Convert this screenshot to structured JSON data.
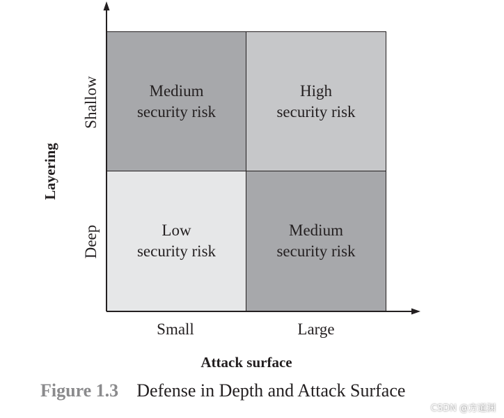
{
  "diagram": {
    "cells": [
      {
        "line1": "Medium",
        "line2": "security risk",
        "fill": "#a7a8ab"
      },
      {
        "line1": "High",
        "line2": "security risk",
        "fill": "#c6c7c9"
      },
      {
        "line1": "Low",
        "line2": "security risk",
        "fill": "#e6e7e8"
      },
      {
        "line1": "Medium",
        "line2": "security risk",
        "fill": "#a7a8ab"
      }
    ],
    "y_axis": {
      "title": "Layering",
      "ticks": [
        "Shallow",
        "Deep"
      ]
    },
    "x_axis": {
      "title": "Attack surface",
      "ticks": [
        "Small",
        "Large"
      ]
    }
  },
  "caption": {
    "number": "Figure 1.3",
    "text": "Defense in Depth and Attack Surface"
  },
  "watermark": "CSDN @方道渊"
}
